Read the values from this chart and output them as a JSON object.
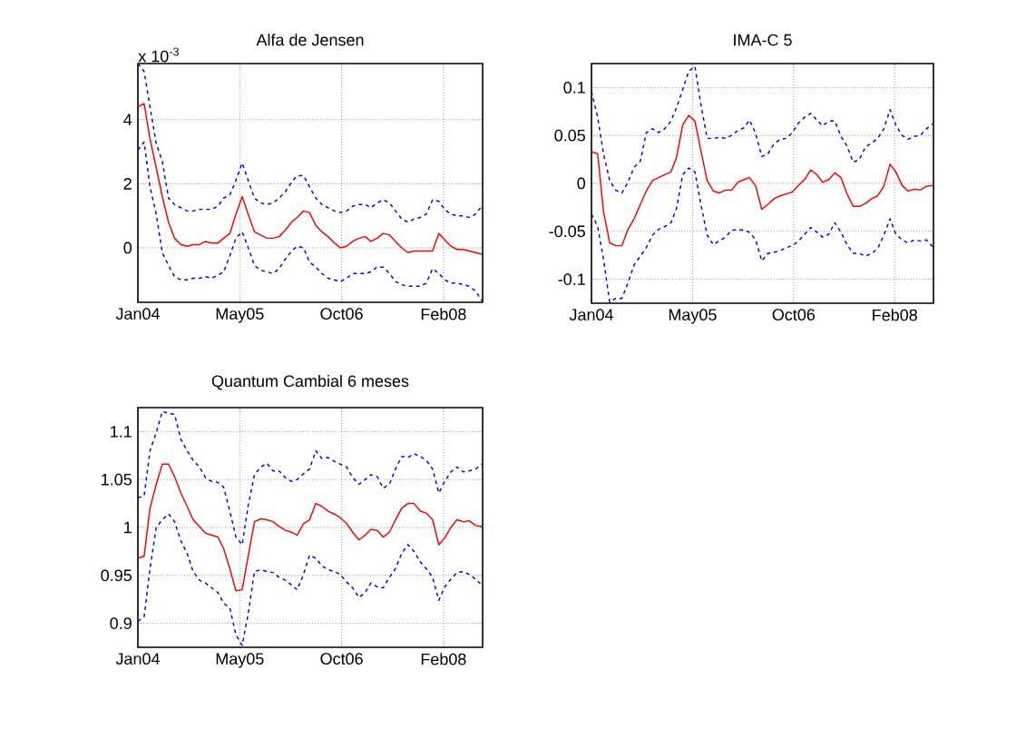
{
  "chart_data": [
    {
      "type": "line",
      "title": "Alfa de Jensen",
      "annotations": [
        "x 10$^{-3}$"
      ],
      "grid": true,
      "x": [
        "2004-01",
        "2004-02",
        "2004-03",
        "2004-04",
        "2004-05",
        "2004-06",
        "2004-07",
        "2004-08",
        "2004-09",
        "2004-10",
        "2004-11",
        "2004-12",
        "2005-01",
        "2005-02",
        "2005-03",
        "2005-04",
        "2005-05",
        "2005-06",
        "2005-07",
        "2005-08",
        "2005-09",
        "2005-10",
        "2005-11",
        "2005-12",
        "2006-01",
        "2006-02",
        "2006-03",
        "2006-04",
        "2006-05",
        "2006-06",
        "2006-07",
        "2006-08",
        "2006-09",
        "2006-10",
        "2006-11",
        "2006-12",
        "2007-01",
        "2007-02",
        "2007-03",
        "2007-04",
        "2007-05",
        "2007-06",
        "2007-07",
        "2007-08",
        "2007-09",
        "2007-10",
        "2007-11",
        "2007-12",
        "2008-01",
        "2008-02",
        "2008-03",
        "2008-04",
        "2008-05",
        "2008-06",
        "2008-07",
        "2008-08",
        "2008-09"
      ],
      "xlim": [
        "2004-01-01",
        "2008-09-05"
      ],
      "xticks": [
        {
          "value": "2004-01-01",
          "label": "Jan04"
        },
        {
          "value": "2005-05-20",
          "label": "May05"
        },
        {
          "value": "2006-10-07",
          "label": "Oct06"
        },
        {
          "value": "2008-02-24",
          "label": "Feb08"
        }
      ],
      "ylim": [
        -1.7,
        5.75
      ],
      "yticks": [
        0,
        2,
        4
      ],
      "series": [
        {
          "color": "#ff0000",
          "line_style": "solid",
          "values": [
            4.4,
            4.5,
            3.4,
            2.5,
            1.6,
            0.8,
            0.3,
            0.1,
            0.05,
            0.1,
            0.1,
            0.2,
            0.15,
            0.15,
            0.3,
            0.45,
            1.05,
            1.6,
            1.05,
            0.5,
            0.4,
            0.3,
            0.3,
            0.35,
            0.55,
            0.8,
            0.95,
            1.15,
            1.1,
            0.7,
            0.5,
            0.35,
            0.15,
            0,
            0.05,
            0.2,
            0.3,
            0.35,
            0.2,
            0.3,
            0.45,
            0.4,
            0.2,
            0,
            -0.15,
            -0.1,
            -0.1,
            -0.1,
            -0.1,
            0.45,
            0.25,
            0.05,
            -0.05,
            -0.05,
            -0.1,
            -0.15,
            -0.2
          ]
        },
        {
          "color": "#0000ff",
          "line_style": "dashed",
          "values": [
            5.75,
            5.5,
            4.4,
            3.25,
            2.7,
            1.55,
            1.35,
            1.25,
            1.15,
            1.15,
            1.2,
            1.2,
            1.2,
            1.3,
            1.55,
            1.65,
            2.1,
            2.65,
            2.1,
            1.55,
            1.4,
            1.35,
            1.4,
            1.55,
            1.75,
            2.05,
            2.25,
            2.25,
            1.9,
            1.55,
            1.35,
            1.25,
            1.15,
            1.1,
            1.15,
            1.3,
            1.35,
            1.35,
            1.25,
            1.4,
            1.5,
            1.4,
            1.15,
            0.9,
            0.8,
            0.9,
            0.95,
            1.05,
            1.5,
            1.45,
            1.2,
            1.05,
            1.0,
            1.0,
            0.95,
            1.05,
            1.3
          ]
        },
        {
          "color": "#0000ff",
          "line_style": "dashed",
          "values": [
            3.05,
            3.3,
            1.9,
            1.05,
            -0.15,
            -0.55,
            -0.9,
            -1.0,
            -1.0,
            -0.95,
            -0.95,
            -0.9,
            -0.95,
            -0.85,
            -0.75,
            -0.25,
            0.3,
            0.5,
            0,
            -0.55,
            -0.7,
            -0.75,
            -0.8,
            -0.65,
            -0.35,
            -0.1,
            0.05,
            0,
            -0.45,
            -0.6,
            -0.8,
            -0.95,
            -1.0,
            -1.05,
            -0.95,
            -0.8,
            -0.8,
            -0.8,
            -0.75,
            -0.6,
            -0.6,
            -0.8,
            -1.05,
            -1.15,
            -1.2,
            -1.2,
            -1.2,
            -1.1,
            -0.65,
            -0.8,
            -1.0,
            -1.1,
            -1.1,
            -1.15,
            -1.2,
            -1.35,
            -1.65
          ]
        }
      ]
    },
    {
      "type": "line",
      "title": "IMA-C 5",
      "grid": true,
      "x": [
        "2004-01",
        "2004-02",
        "2004-03",
        "2004-04",
        "2004-05",
        "2004-06",
        "2004-07",
        "2004-08",
        "2004-09",
        "2004-10",
        "2004-11",
        "2004-12",
        "2005-01",
        "2005-02",
        "2005-03",
        "2005-04",
        "2005-05",
        "2005-06",
        "2005-07",
        "2005-08",
        "2005-09",
        "2005-10",
        "2005-11",
        "2005-12",
        "2006-01",
        "2006-02",
        "2006-03",
        "2006-04",
        "2006-05",
        "2006-06",
        "2006-07",
        "2006-08",
        "2006-09",
        "2006-10",
        "2006-11",
        "2006-12",
        "2007-01",
        "2007-02",
        "2007-03",
        "2007-04",
        "2007-05",
        "2007-06",
        "2007-07",
        "2007-08",
        "2007-09",
        "2007-10",
        "2007-11",
        "2007-12",
        "2008-01",
        "2008-02",
        "2008-03",
        "2008-04",
        "2008-05",
        "2008-06",
        "2008-07",
        "2008-08",
        "2008-09"
      ],
      "xlim": [
        "2004-01-01",
        "2008-09-05"
      ],
      "xticks": [
        {
          "value": "2004-01-01",
          "label": "Jan04"
        },
        {
          "value": "2005-05-20",
          "label": "May05"
        },
        {
          "value": "2006-10-07",
          "label": "Oct06"
        },
        {
          "value": "2008-02-24",
          "label": "Feb08"
        }
      ],
      "ylim": [
        -0.125,
        0.125
      ],
      "yticks": [
        -0.1,
        -0.05,
        0,
        0.05,
        0.1
      ],
      "series": [
        {
          "color": "#ff0000",
          "line_style": "solid",
          "values": [
            0.033,
            0.031,
            -0.029,
            -0.062,
            -0.065,
            -0.065,
            -0.048,
            -0.037,
            -0.022,
            -0.008,
            0.003,
            0.006,
            0.009,
            0.012,
            0.027,
            0.061,
            0.071,
            0.065,
            0.034,
            0.003,
            -0.008,
            -0.01,
            -0.007,
            -0.007,
            0.001,
            0.004,
            0.006,
            -0.003,
            -0.027,
            -0.022,
            -0.016,
            -0.013,
            -0.011,
            -0.009,
            -0.002,
            0.004,
            0.014,
            0.009,
            0.001,
            0.004,
            0.011,
            0.006,
            -0.011,
            -0.024,
            -0.024,
            -0.021,
            -0.016,
            -0.013,
            -0.003,
            0.02,
            0.012,
            -0.002,
            -0.008,
            -0.006,
            -0.007,
            -0.003,
            -0.002
          ]
        },
        {
          "color": "#0000ff",
          "line_style": "dashed",
          "values": [
            0.096,
            0.069,
            0.031,
            0.003,
            -0.007,
            -0.01,
            0.001,
            0.017,
            0.023,
            0.053,
            0.057,
            0.053,
            0.057,
            0.065,
            0.079,
            0.098,
            0.117,
            0.122,
            0.082,
            0.047,
            0.047,
            0.048,
            0.047,
            0.05,
            0.055,
            0.058,
            0.066,
            0.052,
            0.028,
            0.031,
            0.041,
            0.046,
            0.047,
            0.053,
            0.063,
            0.069,
            0.073,
            0.066,
            0.06,
            0.065,
            0.065,
            0.049,
            0.039,
            0.022,
            0.025,
            0.038,
            0.042,
            0.047,
            0.057,
            0.077,
            0.061,
            0.05,
            0.046,
            0.049,
            0.05,
            0.057,
            0.062
          ]
        },
        {
          "color": "#0000ff",
          "line_style": "dashed",
          "values": [
            -0.032,
            -0.045,
            -0.079,
            -0.124,
            -0.12,
            -0.12,
            -0.104,
            -0.085,
            -0.076,
            -0.067,
            -0.054,
            -0.048,
            -0.045,
            -0.041,
            -0.026,
            0.009,
            0.016,
            0.012,
            -0.022,
            -0.054,
            -0.064,
            -0.06,
            -0.056,
            -0.049,
            -0.048,
            -0.049,
            -0.051,
            -0.059,
            -0.081,
            -0.073,
            -0.072,
            -0.07,
            -0.067,
            -0.065,
            -0.06,
            -0.053,
            -0.046,
            -0.051,
            -0.056,
            -0.053,
            -0.041,
            -0.051,
            -0.064,
            -0.073,
            -0.073,
            -0.076,
            -0.073,
            -0.068,
            -0.054,
            -0.037,
            -0.053,
            -0.059,
            -0.062,
            -0.059,
            -0.06,
            -0.059,
            -0.066
          ]
        }
      ]
    },
    {
      "type": "line",
      "title": "Quantum Cambial 6 meses",
      "grid": true,
      "x": [
        "2004-01",
        "2004-02",
        "2004-03",
        "2004-04",
        "2004-05",
        "2004-06",
        "2004-07",
        "2004-08",
        "2004-09",
        "2004-10",
        "2004-11",
        "2004-12",
        "2005-01",
        "2005-02",
        "2005-03",
        "2005-04",
        "2005-05",
        "2005-06",
        "2005-07",
        "2005-08",
        "2005-09",
        "2005-10",
        "2005-11",
        "2005-12",
        "2006-01",
        "2006-02",
        "2006-03",
        "2006-04",
        "2006-05",
        "2006-06",
        "2006-07",
        "2006-08",
        "2006-09",
        "2006-10",
        "2006-11",
        "2006-12",
        "2007-01",
        "2007-02",
        "2007-03",
        "2007-04",
        "2007-05",
        "2007-06",
        "2007-07",
        "2007-08",
        "2007-09",
        "2007-10",
        "2007-11",
        "2007-12",
        "2008-01",
        "2008-02",
        "2008-03",
        "2008-04",
        "2008-05",
        "2008-06",
        "2008-07",
        "2008-08",
        "2008-09"
      ],
      "xlim": [
        "2004-01-01",
        "2008-09-05"
      ],
      "xticks": [
        {
          "value": "2004-01-01",
          "label": "Jan04"
        },
        {
          "value": "2005-05-20",
          "label": "May05"
        },
        {
          "value": "2006-10-07",
          "label": "Oct06"
        },
        {
          "value": "2008-02-24",
          "label": "Feb08"
        }
      ],
      "ylim": [
        0.875,
        1.125
      ],
      "yticks": [
        0.9,
        0.95,
        1,
        1.05,
        1.1
      ],
      "series": [
        {
          "color": "#ff0000",
          "line_style": "solid",
          "values": [
            0.968,
            0.97,
            1.02,
            1.045,
            1.066,
            1.066,
            1.053,
            1.036,
            1.022,
            1.008,
            1.001,
            0.994,
            0.992,
            0.99,
            0.978,
            0.957,
            0.934,
            0.935,
            0.97,
            1.006,
            1.009,
            1.008,
            1.006,
            1.001,
            0.997,
            0.995,
            0.992,
            1.004,
            1.008,
            1.025,
            1.022,
            1.017,
            1.014,
            1.01,
            1.004,
            0.995,
            0.987,
            0.992,
            0.998,
            0.997,
            0.99,
            0.995,
            1.008,
            1.02,
            1.025,
            1.025,
            1.017,
            1.015,
            1.008,
            0.982,
            0.989,
            1.0,
            1.008,
            1.006,
            1.007,
            1.002,
            1.001
          ]
        },
        {
          "color": "#0000ff",
          "line_style": "dashed",
          "values": [
            1.031,
            1.033,
            1.08,
            1.099,
            1.121,
            1.119,
            1.118,
            1.092,
            1.08,
            1.07,
            1.063,
            1.052,
            1.048,
            1.047,
            1.042,
            1.017,
            0.99,
            0.982,
            1.023,
            1.055,
            1.063,
            1.067,
            1.059,
            1.059,
            1.052,
            1.048,
            1.05,
            1.056,
            1.061,
            1.08,
            1.072,
            1.073,
            1.069,
            1.066,
            1.063,
            1.052,
            1.045,
            1.05,
            1.055,
            1.053,
            1.041,
            1.045,
            1.061,
            1.074,
            1.073,
            1.077,
            1.074,
            1.07,
            1.061,
            1.036,
            1.048,
            1.058,
            1.063,
            1.058,
            1.059,
            1.061,
            1.066
          ]
        },
        {
          "color": "#0000ff",
          "line_style": "dashed",
          "values": [
            0.902,
            0.907,
            0.957,
            1.0,
            1.008,
            1.014,
            1.006,
            0.986,
            0.973,
            0.954,
            0.945,
            0.942,
            0.937,
            0.932,
            0.921,
            0.916,
            0.888,
            0.877,
            0.91,
            0.954,
            0.956,
            0.954,
            0.953,
            0.948,
            0.945,
            0.94,
            0.935,
            0.951,
            0.971,
            0.968,
            0.96,
            0.956,
            0.954,
            0.951,
            0.943,
            0.937,
            0.927,
            0.932,
            0.942,
            0.938,
            0.937,
            0.948,
            0.957,
            0.973,
            0.982,
            0.975,
            0.964,
            0.957,
            0.948,
            0.924,
            0.938,
            0.946,
            0.953,
            0.954,
            0.951,
            0.946,
            0.94
          ]
        }
      ]
    }
  ]
}
